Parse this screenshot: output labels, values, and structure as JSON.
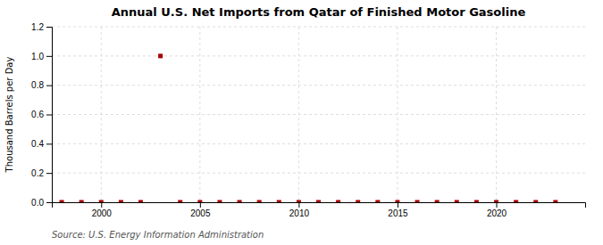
{
  "chart_data": {
    "type": "scatter",
    "title": "Annual U.S. Net Imports from Qatar of Finished Motor Gasoline",
    "ylabel": "Thousand Barrels per Day",
    "source": "Source: U.S. Energy Information Administration",
    "x": [
      1998,
      1999,
      2000,
      2001,
      2002,
      2003,
      2004,
      2005,
      2006,
      2007,
      2008,
      2009,
      2010,
      2011,
      2012,
      2013,
      2014,
      2015,
      2016,
      2017,
      2018,
      2019,
      2020,
      2021,
      2022,
      2023
    ],
    "values": [
      0.0,
      0.0,
      0.0,
      0.0,
      0.0,
      1.0,
      0.0,
      0.0,
      0.0,
      0.0,
      0.0,
      0.0,
      0.0,
      0.0,
      0.0,
      0.0,
      0.0,
      0.0,
      0.0,
      0.0,
      0.0,
      0.0,
      0.0,
      0.0,
      0.0,
      0.0
    ],
    "color": "#aa0000",
    "marker": "square",
    "grid": true,
    "xlim": [
      1997.5,
      2024.5
    ],
    "ylim": [
      0.0,
      1.2
    ],
    "xticks": [
      2000,
      2005,
      2010,
      2015,
      2020
    ],
    "yticks": [
      {
        "value": 0.0,
        "label": "0.0"
      },
      0.2,
      0.4,
      0.6,
      0.8,
      {
        "value": 1.0,
        "label": "1.0"
      },
      1.2
    ]
  }
}
